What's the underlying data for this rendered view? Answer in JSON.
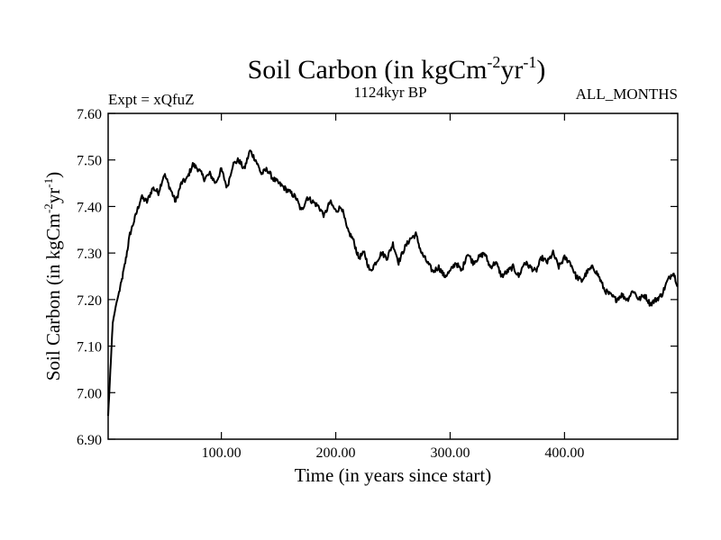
{
  "chart_data": {
    "type": "line",
    "title_main": "Soil Carbon (in kgCm",
    "title_sup1": "-2",
    "title_mid": "yr",
    "title_sup2": "-1",
    "title_end": ")",
    "subtitle_left": "Expt = xQfuZ",
    "subtitle_center": "1124kyr BP",
    "subtitle_right": "ALL_MONTHS",
    "xlabel": "Time (in years since start)",
    "ylabel_main": "Soil Carbon (in kgCm",
    "ylabel_sup1": "-2",
    "ylabel_mid": "yr",
    "ylabel_sup2": "-1",
    "ylabel_end": ")",
    "xlim": [
      1,
      499
    ],
    "ylim": [
      6.9,
      7.6
    ],
    "x_ticks": [
      100,
      200,
      300,
      400
    ],
    "x_tick_labels": [
      "100.00",
      "200.00",
      "300.00",
      "400.00"
    ],
    "y_ticks": [
      6.9,
      7.0,
      7.1,
      7.2,
      7.3,
      7.4,
      7.5,
      7.6
    ],
    "y_tick_labels": [
      "6.90",
      "7.00",
      "7.10",
      "7.20",
      "7.30",
      "7.40",
      "7.50",
      "7.60"
    ],
    "line_color": "#000000",
    "series": [
      {
        "name": "Soil Carbon",
        "x": [
          1,
          3,
          5,
          8,
          12,
          16,
          20,
          25,
          30,
          35,
          40,
          45,
          50,
          55,
          60,
          65,
          70,
          75,
          80,
          85,
          90,
          95,
          100,
          105,
          110,
          115,
          120,
          125,
          130,
          135,
          140,
          145,
          150,
          155,
          160,
          165,
          170,
          175,
          180,
          185,
          190,
          195,
          200,
          205,
          210,
          215,
          220,
          225,
          230,
          235,
          240,
          245,
          250,
          255,
          260,
          265,
          270,
          275,
          280,
          285,
          290,
          295,
          300,
          305,
          310,
          315,
          320,
          325,
          330,
          335,
          340,
          345,
          350,
          355,
          360,
          365,
          370,
          375,
          380,
          385,
          390,
          395,
          400,
          405,
          410,
          415,
          420,
          425,
          430,
          435,
          440,
          445,
          450,
          455,
          460,
          465,
          470,
          475,
          480,
          485,
          490,
          495,
          499
        ],
        "y": [
          6.95,
          7.05,
          7.15,
          7.19,
          7.23,
          7.28,
          7.34,
          7.38,
          7.42,
          7.41,
          7.44,
          7.43,
          7.47,
          7.44,
          7.41,
          7.45,
          7.46,
          7.49,
          7.48,
          7.46,
          7.47,
          7.45,
          7.48,
          7.44,
          7.49,
          7.5,
          7.48,
          7.52,
          7.5,
          7.47,
          7.48,
          7.46,
          7.45,
          7.44,
          7.43,
          7.42,
          7.39,
          7.42,
          7.41,
          7.4,
          7.38,
          7.41,
          7.39,
          7.4,
          7.35,
          7.33,
          7.29,
          7.3,
          7.26,
          7.28,
          7.3,
          7.29,
          7.32,
          7.28,
          7.31,
          7.33,
          7.34,
          7.3,
          7.28,
          7.26,
          7.27,
          7.25,
          7.26,
          7.28,
          7.26,
          7.3,
          7.28,
          7.29,
          7.3,
          7.27,
          7.28,
          7.25,
          7.26,
          7.27,
          7.25,
          7.28,
          7.27,
          7.26,
          7.29,
          7.28,
          7.3,
          7.27,
          7.29,
          7.28,
          7.25,
          7.24,
          7.26,
          7.27,
          7.25,
          7.22,
          7.21,
          7.2,
          7.21,
          7.2,
          7.22,
          7.2,
          7.21,
          7.19,
          7.2,
          7.21,
          7.24,
          7.26,
          7.23
        ]
      }
    ]
  }
}
